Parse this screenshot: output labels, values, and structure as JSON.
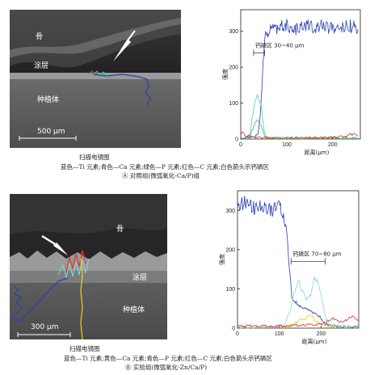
{
  "panelA": {
    "sem": {
      "label_bone": "骨",
      "label_coating": "涂层",
      "label_implant": "种植体",
      "scalebar": "500 μm"
    },
    "sem_caption": "扫描电镜图",
    "legend_line": "蓝色—Ti 元素;青色—Ca 元素;绿色—P 元素;红色—C 元素;白色箭头示钙磷区",
    "title": "Ⓐ 对照组(微弧氧化-Ca/P)组"
  },
  "panelB": {
    "sem": {
      "label_bone": "骨",
      "label_coating": "涂层",
      "label_implant": "种植体",
      "scalebar": "300 μm"
    },
    "sem_caption": "扫描电镜图",
    "legend_line": "蓝色—Ti 元素;黄色—Ca 元素;青色—P 元素;红色—C 元素;白色箭头示钙磷区",
    "title": "Ⓑ 实验组(微弧氧化-Zn/Ca/P)"
  },
  "colors": {
    "ti": "#2a3fb0",
    "ca_a": "#4fc8c8",
    "p_a": "#3cbf4a",
    "c": "#e8322a",
    "ca_b": "#f0d020",
    "p_b": "#7fd8d8"
  },
  "chart_data": [
    {
      "type": "line",
      "xlabel": "距离(μm)",
      "ylabel": "强度",
      "xlim": [
        0,
        260
      ],
      "ylim": [
        0,
        360
      ],
      "xticks": [
        0,
        100,
        200
      ],
      "yticks": [
        0,
        100,
        200,
        300
      ],
      "annotation": "钙磷区 30~40 μm",
      "annotation_range": [
        28,
        52
      ],
      "series": [
        {
          "element": "Ti",
          "color": "#2a3fb0",
          "x": [
            0,
            10,
            20,
            30,
            38,
            42,
            46,
            50,
            54,
            58,
            62,
            66,
            70,
            80,
            100,
            120,
            140,
            160,
            180,
            200,
            220,
            240,
            255
          ],
          "values": [
            0,
            2,
            3,
            5,
            15,
            60,
            150,
            240,
            285,
            295,
            300,
            310,
            305,
            310,
            315,
            305,
            320,
            310,
            315,
            305,
            310,
            315,
            305
          ]
        },
        {
          "element": "Ca",
          "color": "#4fc8c8",
          "x": [
            0,
            10,
            20,
            25,
            30,
            35,
            40,
            45,
            50,
            55,
            60,
            70,
            100,
            150,
            200,
            255
          ],
          "values": [
            2,
            5,
            8,
            60,
            95,
            125,
            110,
            90,
            30,
            8,
            5,
            3,
            4,
            3,
            4,
            3
          ]
        },
        {
          "element": "P",
          "color": "#3cbf4a",
          "x": [
            0,
            10,
            20,
            25,
            30,
            35,
            40,
            45,
            50,
            55,
            60,
            100,
            200,
            255
          ],
          "values": [
            1,
            3,
            5,
            25,
            40,
            55,
            45,
            35,
            15,
            4,
            3,
            2,
            3,
            2
          ]
        },
        {
          "element": "C",
          "color": "#e8322a",
          "x": [
            0,
            5,
            10,
            20,
            30,
            40,
            50,
            60,
            100,
            150,
            200,
            230,
            240,
            255
          ],
          "values": [
            12,
            20,
            8,
            10,
            6,
            5,
            4,
            3,
            2,
            3,
            4,
            8,
            14,
            10
          ]
        }
      ]
    },
    {
      "type": "line",
      "xlabel": "距离(μm)",
      "ylabel": "强度",
      "xlim": [
        0,
        290
      ],
      "ylim": [
        0,
        350
      ],
      "xticks": [
        0,
        100,
        200
      ],
      "yticks": [
        0,
        100,
        200,
        300
      ],
      "annotation": "钙磷区 70~80 μm",
      "annotation_range": [
        128,
        210
      ],
      "series": [
        {
          "element": "Ti",
          "color": "#2a3fb0",
          "x": [
            0,
            20,
            40,
            60,
            80,
            100,
            110,
            118,
            124,
            130,
            140,
            150,
            160,
            170,
            180,
            190,
            200,
            210,
            230,
            250,
            270,
            288
          ],
          "values": [
            310,
            320,
            305,
            315,
            300,
            310,
            290,
            240,
            150,
            80,
            65,
            55,
            50,
            45,
            40,
            35,
            25,
            10,
            5,
            4,
            3,
            3
          ]
        },
        {
          "element": "Ca",
          "color": "#f0d020",
          "x": [
            0,
            60,
            110,
            130,
            150,
            165,
            175,
            185,
            195,
            205,
            215,
            250,
            288
          ],
          "values": [
            2,
            3,
            4,
            8,
            20,
            25,
            35,
            20,
            15,
            10,
            4,
            3,
            2
          ]
        },
        {
          "element": "P",
          "color": "#7fd8d8",
          "x": [
            0,
            60,
            110,
            125,
            135,
            145,
            155,
            165,
            175,
            185,
            195,
            205,
            215,
            250,
            288
          ],
          "values": [
            3,
            3,
            5,
            40,
            90,
            120,
            95,
            70,
            85,
            130,
            110,
            60,
            10,
            4,
            3
          ]
        },
        {
          "element": "C",
          "color": "#e8322a",
          "x": [
            0,
            40,
            80,
            120,
            160,
            200,
            215,
            230,
            245,
            260,
            275,
            288
          ],
          "values": [
            5,
            6,
            5,
            6,
            8,
            10,
            18,
            25,
            15,
            20,
            30,
            18
          ]
        }
      ]
    }
  ]
}
